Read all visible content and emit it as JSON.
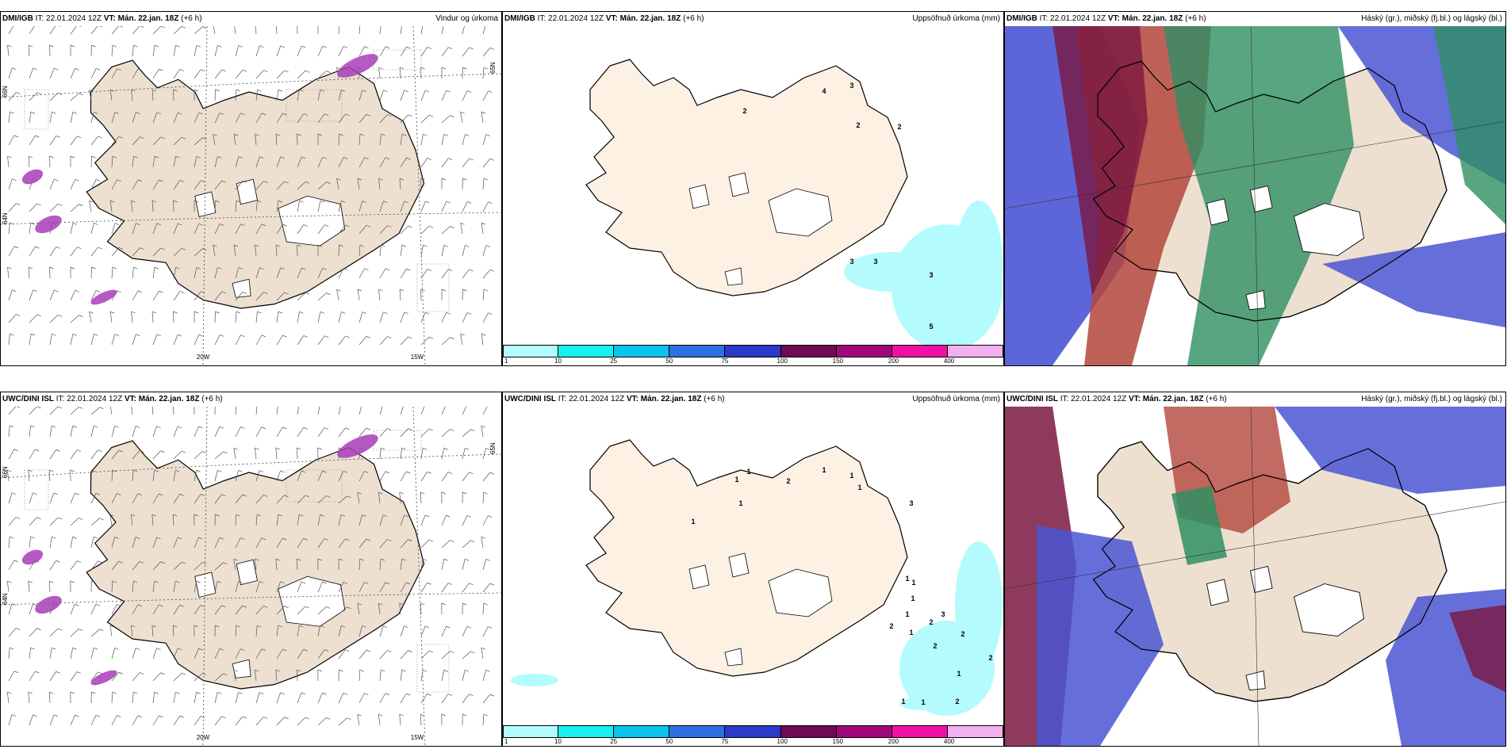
{
  "colors": {
    "land": "#ede0d0",
    "land_light": "#fdf1e4",
    "precip": "#b3fbfd",
    "snow_purple": "#a83cb8",
    "high_blue": "#4b55d4",
    "mid_green": "#2e8f63",
    "low_red": "#b3463c",
    "dark_red": "#7a1840"
  },
  "rows": [
    {
      "panels": [
        {
          "model": "DMI/IGB",
          "it_label": "IT: 22.01.2024 12Z",
          "vt_label": "VT: Mán. 22.jan. 18Z",
          "lead": "(+6 h)",
          "right_title": "Vindur og úrkoma",
          "kind": "wind",
          "lon_labels": [
            "20W",
            "15W"
          ],
          "lat_labels": [
            "66N",
            "64N",
            "65N"
          ]
        },
        {
          "model": "DMI/IGB",
          "it_label": "IT: 22.01.2024 12Z",
          "vt_label": "VT: Mán. 22.jan. 18Z",
          "lead": "(+6 h)",
          "right_title": "Uppsöfnuð úrkoma (mm)",
          "kind": "precip",
          "values": [
            "2",
            "4",
            "3",
            "2",
            "2",
            "3",
            "3",
            "3",
            "5"
          ]
        },
        {
          "model": "DMI/IGB",
          "it_label": "IT: 22.01.2024 12Z",
          "vt_label": "VT: Mán. 22.jan. 18Z",
          "lead": "(+6 h)",
          "right_title": "Háský (gr.), miðský (fj.bl.) og lágský (bl.)",
          "kind": "cloud"
        }
      ]
    },
    {
      "panels": [
        {
          "model": "UWC/DINI ISL",
          "it_label": "IT: 22.01.2024 12Z",
          "vt_label": "VT: Mán. 22.jan. 18Z",
          "lead": "(+6 h)",
          "right_title": "",
          "kind": "wind",
          "lon_labels": [
            "20W",
            "15W"
          ],
          "lat_labels": [
            "66N",
            "64N",
            "65N"
          ]
        },
        {
          "model": "UWC/DINI ISL",
          "it_label": "IT: 22.01.2024 12Z",
          "vt_label": "VT: Mán. 22.jan. 18Z",
          "lead": "(+6 h)",
          "right_title": "Uppsöfnuð úrkoma (mm)",
          "kind": "precip",
          "values": [
            "1",
            "1",
            "2",
            "1",
            "1",
            "1",
            "3",
            "1",
            "1",
            "1",
            "1",
            "1",
            "1",
            "2",
            "2",
            "3",
            "1",
            "2",
            "2",
            "2",
            "1",
            "1",
            "1",
            "2",
            "2"
          ]
        },
        {
          "model": "UWC/DINI ISL",
          "it_label": "IT: 22.01.2024 12Z",
          "vt_label": "VT: Mán. 22.jan. 18Z",
          "lead": "(+6 h)",
          "right_title": "Háský (gr.), miðský (fj.bl.) og lágský (bl.)",
          "kind": "cloud"
        }
      ]
    }
  ],
  "colorbar": {
    "ticks": [
      "1",
      "10",
      "25",
      "50",
      "75",
      "100",
      "150",
      "200",
      "400"
    ],
    "colors": [
      "#b3fbfd",
      "#16f0f0",
      "#0ac3ee",
      "#2f6fe6",
      "#2a3ac9",
      "#6f0a53",
      "#a0087a",
      "#ef10a8",
      "#f3b0ee"
    ]
  }
}
